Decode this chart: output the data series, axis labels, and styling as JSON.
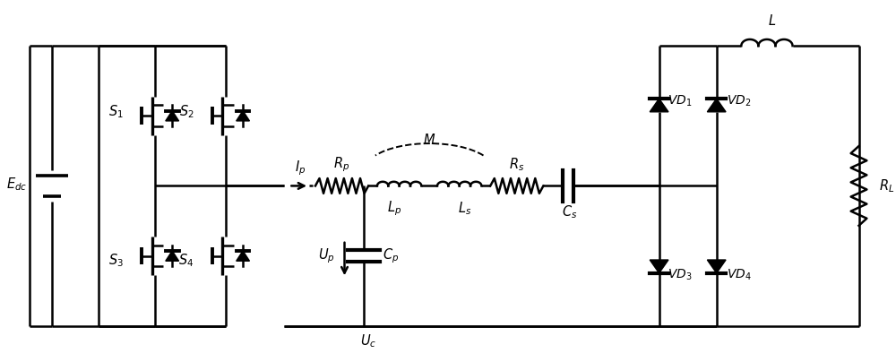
{
  "fig_width": 10.0,
  "fig_height": 4.04,
  "dpi": 100,
  "line_color": "#000000",
  "line_width": 1.8,
  "bg_color": "#ffffff",
  "label_fontsize": 10.5
}
